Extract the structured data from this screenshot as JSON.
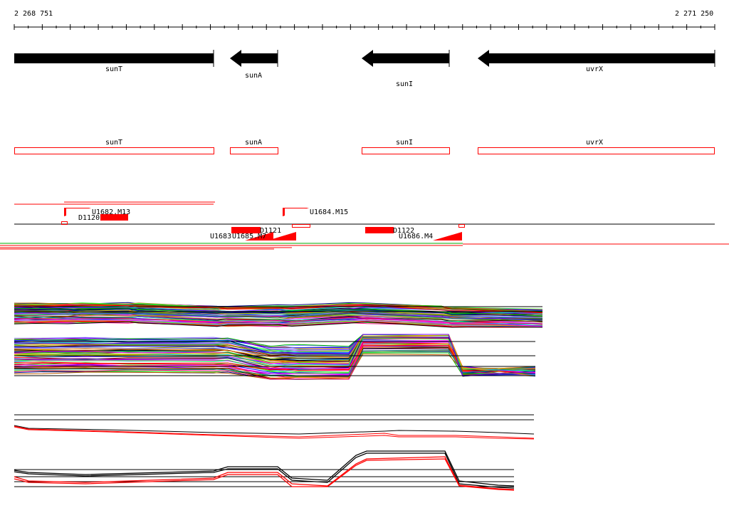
{
  "ruler": {
    "start_label": "2 268 751",
    "end_label": "2 271 250"
  },
  "genes": [
    {
      "name": "sunT",
      "strand": "-"
    },
    {
      "name": "sunA",
      "strand": "-"
    },
    {
      "name": "sunI",
      "strand": "-"
    },
    {
      "name": "uvrX",
      "strand": "-"
    }
  ],
  "gene_models": [
    {
      "name": "sunT"
    },
    {
      "name": "sunA"
    },
    {
      "name": "sunI"
    },
    {
      "name": "uvrX"
    }
  ],
  "features": [
    {
      "label": "U1682.M13"
    },
    {
      "label": "D1120"
    },
    {
      "label": "D1121"
    },
    {
      "label": "U1683"
    },
    {
      "label": "U1685.M7"
    },
    {
      "label": "U1684.M15"
    },
    {
      "label": "D1122"
    },
    {
      "label": "U1686.M4"
    }
  ],
  "colors": {
    "gene_arrow": "#000000",
    "feature": "#ff0000",
    "axis": "#000000"
  }
}
